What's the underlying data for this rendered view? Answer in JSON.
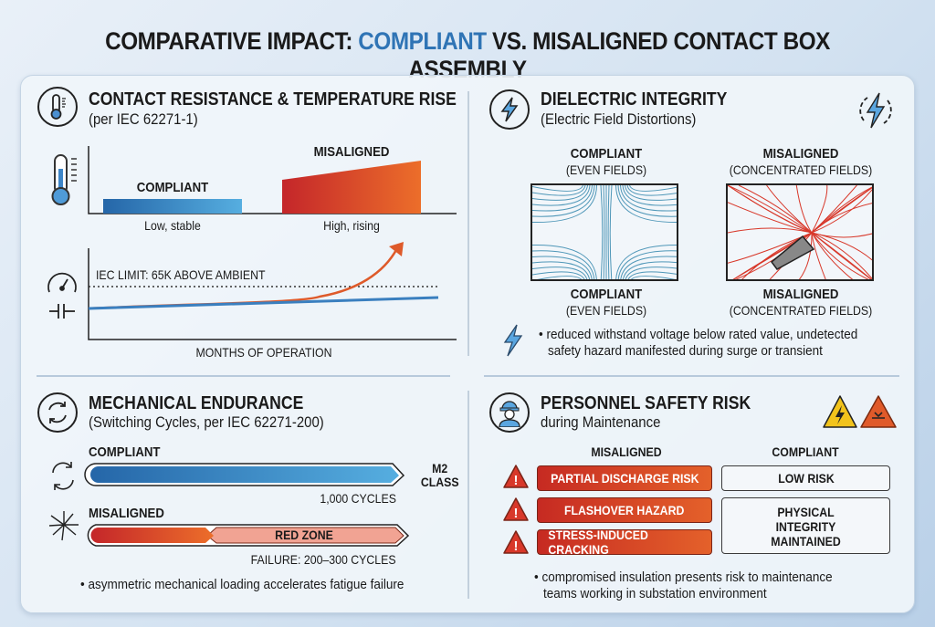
{
  "title": {
    "pre": "COMPARATIVE IMPACT: ",
    "accent": "COMPLIANT",
    "post": " VS. MISALIGNED CONTACT BOX ASSEMBLY"
  },
  "colors": {
    "compliant": "#2f74b5",
    "misaligned": "#d2372a",
    "accent_orange": "#e8682a"
  },
  "thermal": {
    "icon": "thermometer-icon",
    "title": "CONTACT RESISTANCE & TEMPERATURE RISE",
    "subtitle": "(per IEC 62271-1)",
    "compliant_label": "COMPLIANT",
    "misaligned_label": "MISALIGNED",
    "compliant_caption": "Low, stable",
    "misaligned_caption": "High, rising",
    "limit_label": "IEC LIMIT: 65K ABOVE AMBIENT",
    "x_label": "MONTHS OF OPERATION"
  },
  "dielectric": {
    "icon": "lightning-bolt-icon",
    "title": "DIELECTRIC INTEGRITY",
    "subtitle": "(Electric Field Distortions)",
    "compliant_label": "COMPLIANT",
    "compliant_sub": "(EVEN FIELDS)",
    "misaligned_label": "MISALIGNED",
    "misaligned_sub": "(CONCENTRATED FIELDS)",
    "bullet_line1": "• reduced withstand voltage below rated value, undetected",
    "bullet_line2": "safety hazard manifested during surge or transient"
  },
  "mechanical": {
    "icon": "cycle-arrows-icon",
    "title": "MECHANICAL ENDURANCE",
    "subtitle": "(Switching Cycles, per IEC 62271-200)",
    "compliant_label": "COMPLIANT",
    "class_label_1": "M2",
    "class_label_2": "CLASS",
    "compliant_cycles": "1,000 CYCLES",
    "misaligned_label": "MISALIGNED",
    "red_zone": "RED ZONE",
    "failure": "FAILURE: 200–300 CYCLES",
    "bullet": "• asymmetric mechanical loading accelerates fatigue failure"
  },
  "safety": {
    "icon": "worker-helmet-icon",
    "title": "PERSONNEL SAFETY RISK",
    "subtitle": "during Maintenance",
    "col_misaligned": "MISALIGNED",
    "col_compliant": "COMPLIANT",
    "risks": [
      "PARTIAL DISCHARGE RISK",
      "FLASHOVER HAZARD",
      "STRESS-INDUCED CRACKING"
    ],
    "compliant_items": [
      "LOW RISK",
      "PHYSICAL INTEGRITY MAINTAINED"
    ],
    "bullet_line1": "• compromised insulation presents risk to maintenance",
    "bullet_line2": "teams working in substation environment"
  }
}
